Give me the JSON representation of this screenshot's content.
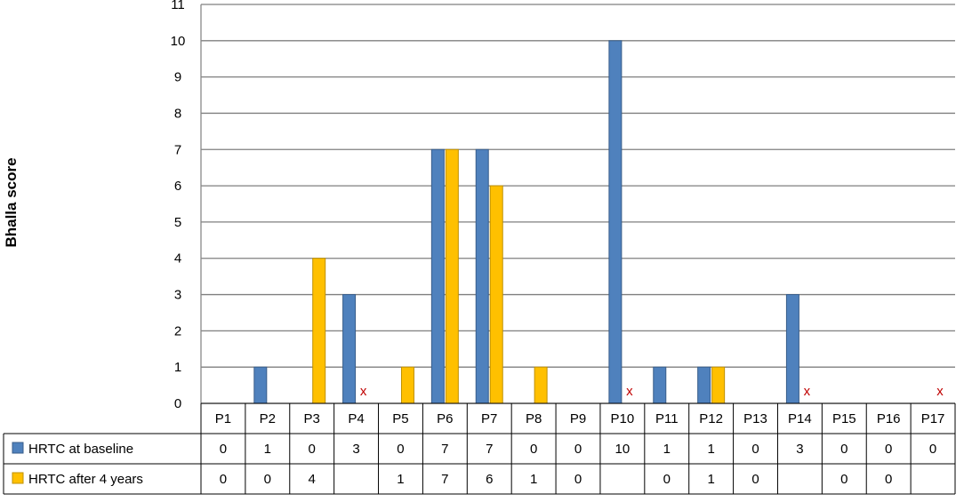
{
  "chart_data": {
    "type": "bar",
    "ylabel": "Bhalla score",
    "ylim": [
      0,
      11
    ],
    "yticks": [
      0,
      1,
      2,
      3,
      4,
      5,
      6,
      7,
      8,
      9,
      10,
      11
    ],
    "grid": true,
    "categories": [
      "P1",
      "P2",
      "P3",
      "P4",
      "P5",
      "P6",
      "P7",
      "P8",
      "P9",
      "P10",
      "P11",
      "P12",
      "P13",
      "P14",
      "P15",
      "P16",
      "P17"
    ],
    "series": [
      {
        "name": "HRTC at baseline",
        "color": "#4f81bd",
        "border": "#385d8a",
        "values": [
          0,
          1,
          0,
          3,
          0,
          7,
          7,
          0,
          0,
          10,
          1,
          1,
          0,
          3,
          0,
          0,
          0
        ]
      },
      {
        "name": "HRTC after 4 years",
        "color": "#ffc000",
        "border": "#bf9000",
        "values": [
          0,
          0,
          4,
          null,
          1,
          7,
          6,
          1,
          0,
          null,
          0,
          1,
          0,
          null,
          0,
          0,
          null
        ]
      }
    ],
    "missing_marker": "x",
    "missing_color": "#c00000",
    "legend": "data-table"
  }
}
